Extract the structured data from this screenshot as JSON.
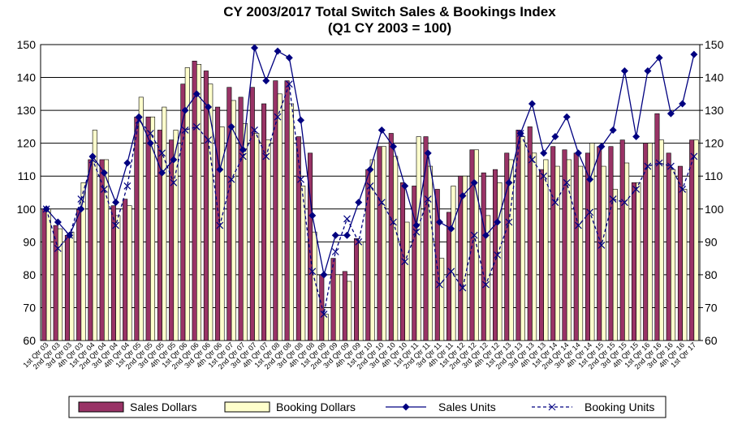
{
  "chart_data": {
    "type": "bar-line",
    "title": "CY 2003/2017 Total Switch Sales & Bookings Index",
    "subtitle": "(Q1 CY 2003 = 100)",
    "categories": [
      "1st Qtr 03",
      "2nd Qtr 03",
      "3rd Qtr 03",
      "4th Qtr 03",
      "1st Qtr 04",
      "2nd Qtr 04",
      "3rd Qtr 04",
      "4th Qtr 04",
      "1st Qtr 05",
      "2nd Qtr 05",
      "3rd Qtr 05",
      "4th Qtr 05",
      "1st Qtr 06",
      "2nd Qtr 06",
      "3rd Qtr 06",
      "4th Qtr 06",
      "1st Qtr 07",
      "2nd Qtr 07",
      "3rd Qtr 07",
      "4th Qtr 07",
      "1st Qtr 08",
      "2nd Qtr 08",
      "3rd Qtr 08",
      "4th Qtr 08",
      "1st Qtr 09",
      "2nd Qtr 09",
      "3rd Qtr 09",
      "4th Qtr 09",
      "1st Qtr 10",
      "2nd Qtr 10",
      "3rd Qtr 10",
      "4th Qtr 10",
      "1st Qtr 11",
      "2nd Qtr 11",
      "3rd Qtr 11",
      "4th Qtr 11",
      "1st Qtr 12",
      "2nd Qtr 12",
      "3rd Qtr 12",
      "4th Qtr 12",
      "1st Qtr 13",
      "2nd Qtr 13",
      "3rd Qtr 13",
      "4th Qtr 13",
      "1st Qtr 14",
      "2nd Qtr 14",
      "3rd Qtr 14",
      "4th Qtr 14",
      "1st Qtr 15",
      "2nd Qtr 15",
      "3rd Qtr 15",
      "4th Qtr 15",
      "1st Qtr 16",
      "2nd Qtr 16",
      "3rd Qtr 16",
      "4th Qtr 16",
      "1st Qtr 17"
    ],
    "series": [
      {
        "name": "Sales Dollars",
        "kind": "bar",
        "color": "#993366",
        "values": [
          100,
          95,
          92,
          100,
          115,
          115,
          101,
          103,
          128,
          128,
          124,
          121,
          138,
          145,
          142,
          131,
          137,
          134,
          137,
          132,
          139,
          139,
          122,
          117,
          80,
          85,
          81,
          91,
          112,
          119,
          123,
          108,
          107,
          122,
          106,
          99,
          110,
          118,
          111,
          112,
          117,
          124,
          125,
          112,
          119,
          118,
          117,
          117,
          119,
          119,
          121,
          108,
          120,
          129,
          117,
          113,
          121
        ]
      },
      {
        "name": "Booking Dollars",
        "kind": "bar",
        "color": "#ffffcc",
        "values": [
          100,
          94,
          93,
          108,
          124,
          115,
          98,
          101,
          134,
          128,
          131,
          124,
          143,
          144,
          138,
          125,
          133,
          126,
          123,
          121,
          135,
          132,
          107,
          93,
          68,
          80,
          78,
          90,
          115,
          119,
          116,
          96,
          122,
          113,
          85,
          107,
          110,
          118,
          98,
          108,
          115,
          122,
          117,
          115,
          113,
          115,
          113,
          120,
          113,
          106,
          114,
          108,
          120,
          121,
          112,
          106,
          121
        ]
      },
      {
        "name": "Sales Units",
        "kind": "line",
        "marker": "diamond",
        "axis": "y2",
        "color": "#000080",
        "values": [
          100,
          96,
          92,
          100,
          116,
          111,
          102,
          114,
          128,
          120,
          111,
          115,
          130,
          135,
          131,
          112,
          125,
          118,
          149,
          139,
          148,
          146,
          127,
          98,
          80,
          92,
          92,
          102,
          112,
          124,
          119,
          107,
          95,
          117,
          96,
          94,
          104,
          108,
          92,
          96,
          108,
          123,
          132,
          117,
          122,
          128,
          117,
          109,
          119,
          124,
          142,
          122,
          142,
          146,
          129,
          132,
          147
        ]
      },
      {
        "name": "Booking Units",
        "kind": "line",
        "marker": "x",
        "dashed": true,
        "axis": "y2",
        "color": "#000080",
        "values": [
          100,
          88,
          92,
          103,
          115,
          106,
          95,
          107,
          127,
          123,
          117,
          108,
          124,
          125,
          121,
          95,
          109,
          116,
          124,
          116,
          128,
          138,
          109,
          81,
          68,
          87,
          97,
          90,
          107,
          102,
          96,
          84,
          93,
          103,
          77,
          81,
          76,
          92,
          77,
          86,
          96,
          123,
          115,
          110,
          102,
          108,
          95,
          99,
          89,
          103,
          102,
          106,
          113,
          114,
          113,
          106,
          116
        ]
      }
    ],
    "ylim": [
      60,
      150
    ],
    "yticks": [
      60,
      70,
      80,
      90,
      100,
      110,
      120,
      130,
      140,
      150
    ],
    "y2lim": [
      60,
      150
    ],
    "y2ticks": [
      60,
      70,
      80,
      90,
      100,
      110,
      120,
      130,
      140,
      150
    ],
    "grid": true
  }
}
